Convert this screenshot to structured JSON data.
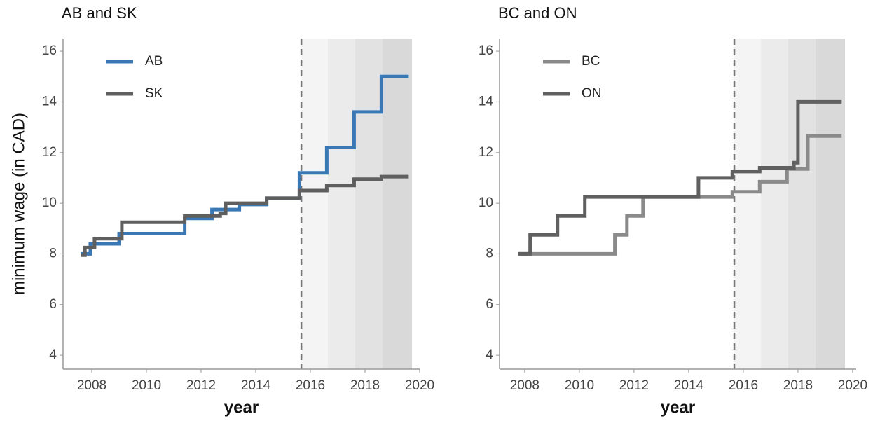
{
  "chart_data": [
    {
      "type": "line",
      "title": "AB and SK",
      "x_label": "year",
      "y_label": "minimum wage (in CAD)",
      "xlim": [
        2006.95,
        2020.0
      ],
      "ylim": [
        3.45,
        16.5
      ],
      "xticks": [
        2008,
        2010,
        2012,
        2014,
        2016,
        2018,
        2020
      ],
      "yticks": [
        4,
        6,
        8,
        10,
        12,
        14,
        16
      ],
      "vline": 2015.67,
      "shaded_regions": [
        {
          "x": [
            2015.67,
            2016.64
          ],
          "color": "#f4f4f4"
        },
        {
          "x": [
            2016.64,
            2017.64
          ],
          "color": "#ebebeb"
        },
        {
          "x": [
            2017.64,
            2018.64
          ],
          "color": "#e2e2e2"
        },
        {
          "x": [
            2018.64,
            2019.72
          ],
          "color": "#d9d9d9"
        }
      ],
      "legend": "upper left",
      "series": [
        {
          "name": "AB",
          "color": "#3a78b5",
          "x": [
            2007.6,
            2007.95,
            2007.95,
            2009.0,
            2009.0,
            2011.4,
            2011.4,
            2012.4,
            2012.4,
            2013.4,
            2013.4,
            2014.4,
            2014.4,
            2015.6,
            2015.6,
            2016.6,
            2016.6,
            2017.6,
            2017.6,
            2018.6,
            2018.6,
            2019.6
          ],
          "values": [
            8.0,
            8.0,
            8.4,
            8.4,
            8.8,
            8.8,
            9.4,
            9.4,
            9.75,
            9.75,
            9.95,
            9.95,
            10.2,
            10.2,
            11.2,
            11.2,
            12.2,
            12.2,
            13.6,
            13.6,
            15.0,
            15.0
          ]
        },
        {
          "name": "SK",
          "color": "#5f5f5f",
          "x": [
            2007.6,
            2007.75,
            2007.75,
            2008.1,
            2008.1,
            2009.1,
            2009.1,
            2011.4,
            2011.4,
            2012.7,
            2012.7,
            2012.9,
            2012.9,
            2014.4,
            2014.4,
            2015.6,
            2015.6,
            2016.6,
            2016.6,
            2017.6,
            2017.6,
            2018.6,
            2018.6,
            2019.6
          ],
          "values": [
            7.95,
            7.95,
            8.25,
            8.25,
            8.6,
            8.6,
            9.25,
            9.25,
            9.5,
            9.5,
            9.6,
            9.6,
            10.0,
            10.0,
            10.2,
            10.2,
            10.5,
            10.5,
            10.7,
            10.7,
            10.95,
            10.95,
            11.05,
            11.05
          ]
        }
      ]
    },
    {
      "type": "line",
      "title": "BC and ON",
      "x_label": "year",
      "xlim": [
        2007.08,
        2020.13
      ],
      "ylim": [
        3.45,
        16.5
      ],
      "xticks": [
        2008,
        2010,
        2012,
        2014,
        2016,
        2018,
        2020
      ],
      "yticks": [
        4,
        6,
        8,
        10,
        12,
        14,
        16
      ],
      "vline": 2015.67,
      "shaded_regions": [
        {
          "x": [
            2015.67,
            2016.64
          ],
          "color": "#f4f4f4"
        },
        {
          "x": [
            2016.64,
            2017.64
          ],
          "color": "#ebebeb"
        },
        {
          "x": [
            2017.64,
            2018.64
          ],
          "color": "#e2e2e2"
        },
        {
          "x": [
            2018.64,
            2019.72
          ],
          "color": "#d9d9d9"
        }
      ],
      "legend": "upper left",
      "series": [
        {
          "name": "BC",
          "color": "#8a8a8a",
          "x": [
            2007.77,
            2011.3,
            2011.3,
            2011.74,
            2011.74,
            2012.33,
            2012.33,
            2015.6,
            2015.6,
            2016.6,
            2016.6,
            2017.6,
            2017.6,
            2018.36,
            2018.36,
            2019.6
          ],
          "values": [
            8.0,
            8.0,
            8.75,
            8.75,
            9.5,
            9.5,
            10.25,
            10.25,
            10.45,
            10.45,
            10.85,
            10.85,
            11.35,
            11.35,
            12.65,
            12.65
          ]
        },
        {
          "name": "ON",
          "color": "#606060",
          "x": [
            2007.77,
            2008.2,
            2008.2,
            2009.2,
            2009.2,
            2010.2,
            2010.2,
            2014.36,
            2014.36,
            2015.6,
            2015.6,
            2016.6,
            2016.6,
            2017.85,
            2017.85,
            2018.0,
            2018.0,
            2019.6
          ],
          "values": [
            8.0,
            8.0,
            8.75,
            8.75,
            9.5,
            9.5,
            10.25,
            10.25,
            11.0,
            11.0,
            11.25,
            11.25,
            11.4,
            11.4,
            11.6,
            11.6,
            14.0,
            14.0
          ]
        }
      ]
    }
  ]
}
